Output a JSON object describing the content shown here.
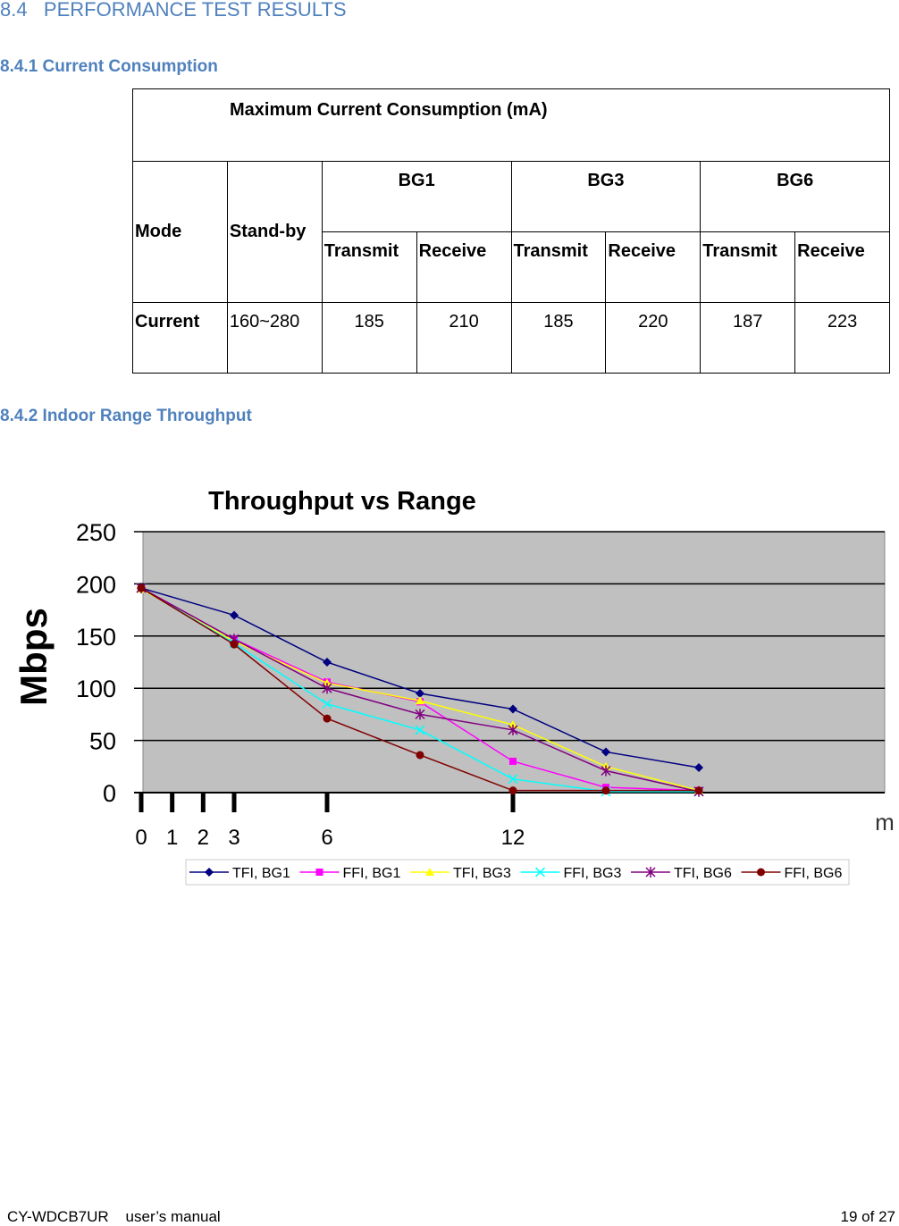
{
  "heading": "8.4   PERFORMANCE TEST RESULTS",
  "sections": [
    {
      "title": "8.4.1 Current Consumption"
    },
    {
      "title": "8.4.2 Indoor Range Throughput"
    }
  ],
  "table": {
    "caption": "Maximum Current Consumption (mA)",
    "header": [
      "Mode",
      "Stand-by"
    ],
    "groups": [
      "BG1",
      "BG3",
      "BG6"
    ],
    "subheaders": [
      "Transmit",
      "Receive",
      "Transmit",
      "Receive",
      "Transmit",
      "Receive"
    ],
    "rows": [
      [
        "Current",
        "160~280",
        185,
        210,
        185,
        220,
        187,
        223
      ]
    ]
  },
  "chart_data": {
    "type": "line",
    "title": "Throughput vs Range",
    "y_label": "Mbps",
    "x_label": "m",
    "x": [
      0,
      3,
      6,
      9,
      12,
      15,
      18
    ],
    "xlim": [
      0,
      24
    ],
    "xticks": [
      0,
      1,
      2,
      3,
      6,
      12
    ],
    "ylim": [
      0,
      250
    ],
    "yticks": [
      0,
      50,
      100,
      150,
      200,
      250
    ],
    "grid": true,
    "plot_background": "#c0c0c0",
    "legend": "bottom",
    "series": [
      {
        "name": "TFI, BG1",
        "color": "#000080",
        "marker": "diamond",
        "values": [
          196,
          170,
          125,
          95,
          80,
          39,
          24
        ]
      },
      {
        "name": "FFI, BG1",
        "color": "#ff00ff",
        "marker": "square",
        "values": [
          196,
          147,
          106,
          87,
          30,
          5,
          2
        ]
      },
      {
        "name": "TFI, BG3",
        "color": "#ffff00",
        "marker": "triangle",
        "values": [
          195,
          145,
          105,
          88,
          65,
          25,
          2
        ]
      },
      {
        "name": "FFI, BG3",
        "color": "#00ffff",
        "marker": "x",
        "values": [
          196,
          143,
          85,
          60,
          13,
          1,
          1
        ]
      },
      {
        "name": "TFI, BG6",
        "color": "#800080",
        "marker": "star",
        "values": [
          196,
          147,
          100,
          75,
          60,
          21,
          1
        ]
      },
      {
        "name": "FFI, BG6",
        "color": "#800000",
        "marker": "circle",
        "values": [
          196,
          142,
          71,
          36,
          2,
          2,
          2
        ]
      }
    ]
  },
  "footer": {
    "left": "CY-WDCB7UR    user’s manual",
    "right": "19 of 27"
  }
}
